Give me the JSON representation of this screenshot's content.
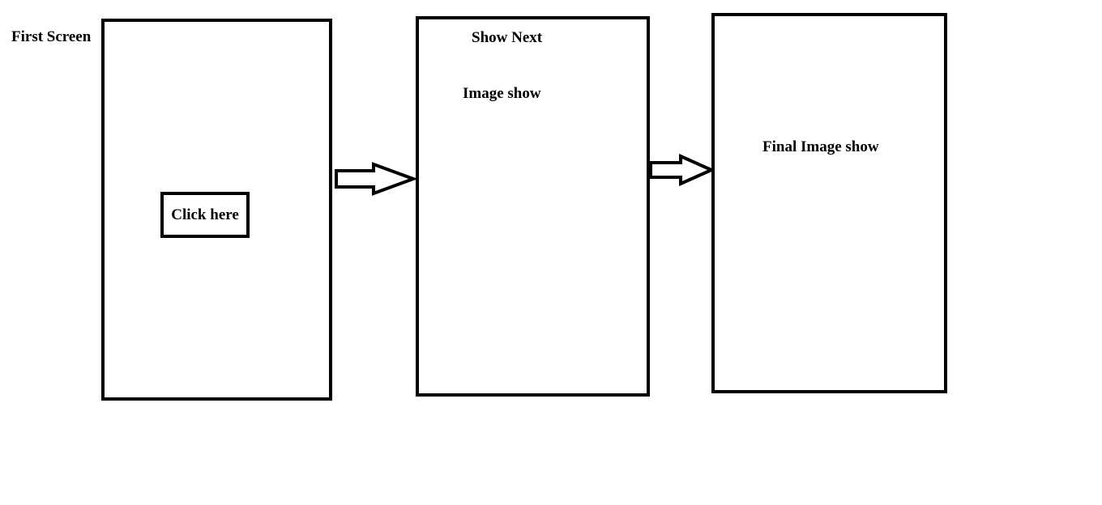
{
  "screens": {
    "first": {
      "title": "First Screen",
      "button_label": "Click here"
    },
    "second": {
      "title": "Show Next",
      "content_label": "Image show"
    },
    "third": {
      "content_label": "Final Image show"
    }
  },
  "colors": {
    "stroke": "#000000",
    "background": "#ffffff"
  },
  "icons": {
    "connector_1": "right-arrow-icon",
    "connector_2": "right-arrow-icon"
  }
}
